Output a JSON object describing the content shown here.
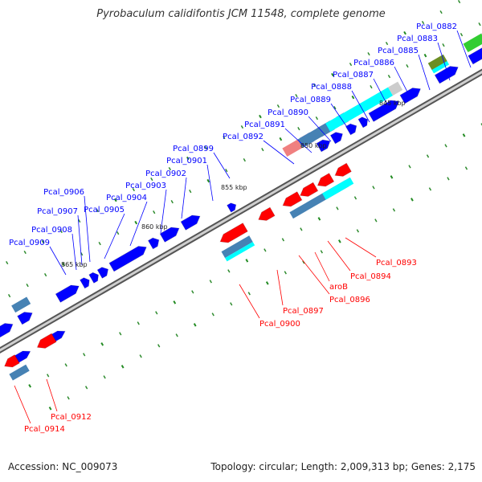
{
  "title": "Pyrobaculum calidifontis JCM 11548, complete genome",
  "accession": "Accession: NC_009073",
  "summary": "Topology: circular; Length: 2,009,313 bp; Genes: 2,175",
  "colors": {
    "forward": "#0000ff",
    "reverse": "#ff0000",
    "backbone": "#888888",
    "tick": "#228b22",
    "rna": "#00ffff",
    "cds": "#4682b4"
  },
  "scale_ticks": [
    "845 kbp",
    "850 kbp",
    "855 kbp",
    "860 kbp",
    "865 kbp"
  ],
  "labels_top": [
    "Pcal_0882",
    "Pcal_0883",
    "Pcal_0885",
    "Pcal_0886",
    "Pcal_0887",
    "Pcal_0888",
    "Pcal_0889",
    "Pcal_0890",
    "Pcal_0891",
    "Pcal_0892",
    "Pcal_0899",
    "Pcal_0901",
    "Pcal_0902",
    "Pcal_0903",
    "Pcal_0904",
    "Pcal_0905",
    "Pcal_0906",
    "Pcal_0907",
    "Pcal_0908",
    "Pcal_0909"
  ],
  "labels_bottom": [
    "Pcal_0893",
    "Pcal_0894",
    "aroB",
    "Pcal_0896",
    "Pcal_0897",
    "Pcal_0900",
    "Pcal_0912",
    "Pcal_0914"
  ]
}
